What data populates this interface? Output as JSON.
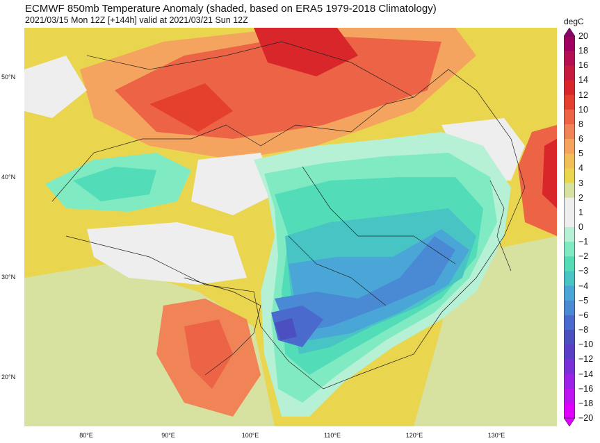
{
  "header": {
    "title": "ECMWF 850mb Temperature Anomaly (shaded, based on ERA5 1979-2018 Climatology)",
    "subtitle": "2021/03/15 Mon 12Z [+144h] valid at 2021/03/21 Sun 12Z"
  },
  "map": {
    "lat_labels": [
      "50°N",
      "40°N",
      "30°N",
      "20°N"
    ],
    "lon_labels": [
      "80°E",
      "90°E",
      "100°E",
      "110°E",
      "120°E",
      "130°E"
    ]
  },
  "colorbar": {
    "unit": "degC",
    "levels": [
      {
        "label": "20",
        "color": "#8b006b"
      },
      {
        "label": "18",
        "color": "#a0005f"
      },
      {
        "label": "16",
        "color": "#b30f52"
      },
      {
        "label": "14",
        "color": "#c61a3e"
      },
      {
        "label": "12",
        "color": "#d9262b"
      },
      {
        "label": "10",
        "color": "#e4402d"
      },
      {
        "label": "8",
        "color": "#ec6445"
      },
      {
        "label": "6",
        "color": "#f18456"
      },
      {
        "label": "5",
        "color": "#f4a45f"
      },
      {
        "label": "4",
        "color": "#f1bf57"
      },
      {
        "label": "3",
        "color": "#e9d54e"
      },
      {
        "label": "2",
        "color": "#d7e1a0"
      },
      {
        "label": "1",
        "color": "#eeeeee"
      },
      {
        "label": "0",
        "color": "#eeeeee"
      },
      {
        "label": "−1",
        "color": "#b6f0d5"
      },
      {
        "label": "−2",
        "color": "#80ebc2"
      },
      {
        "label": "−3",
        "color": "#52dcb8"
      },
      {
        "label": "−4",
        "color": "#49c4c4"
      },
      {
        "label": "−5",
        "color": "#4aa6d6"
      },
      {
        "label": "−6",
        "color": "#4a89d4"
      },
      {
        "label": "−8",
        "color": "#4a6bcd"
      },
      {
        "label": "−10",
        "color": "#4c4fbf"
      },
      {
        "label": "−12",
        "color": "#5b3ec8"
      },
      {
        "label": "−14",
        "color": "#7a30d8"
      },
      {
        "label": "−16",
        "color": "#9b22e6"
      },
      {
        "label": "−18",
        "color": "#bd14f0"
      },
      {
        "label": "−20",
        "color": "#e000ff"
      }
    ]
  }
}
